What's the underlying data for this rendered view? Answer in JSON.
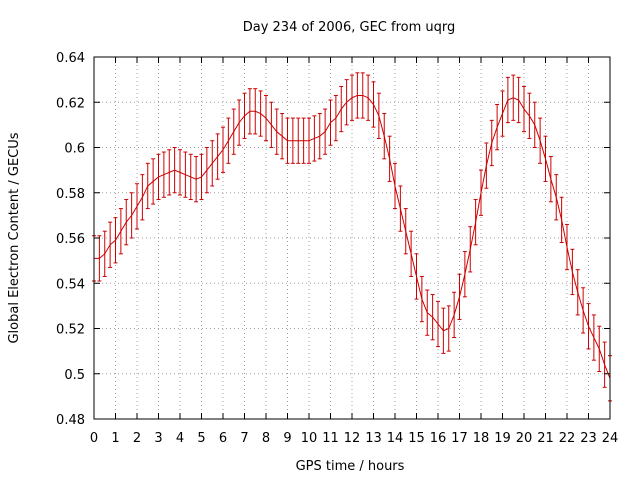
{
  "chart_data": {
    "type": "line",
    "title": "Day 234 of 2006, GEC from uqrg",
    "xlabel": "GPS time / hours",
    "ylabel": "Global Electron Content / GECUs",
    "xlim": [
      0,
      24
    ],
    "ylim": [
      0.48,
      0.64
    ],
    "xticks": [
      0,
      1,
      2,
      3,
      4,
      5,
      6,
      7,
      8,
      9,
      10,
      11,
      12,
      13,
      14,
      15,
      16,
      17,
      18,
      19,
      20,
      21,
      22,
      23,
      24
    ],
    "yticks": [
      "0.48",
      "0.5",
      "0.52",
      "0.54",
      "0.56",
      "0.58",
      "0.6",
      "0.62",
      "0.64"
    ],
    "grid": true,
    "colors": {
      "series": "#cc0000",
      "grid": "#a0a0a0",
      "frame": "#000000"
    },
    "series": [
      {
        "error_bars": true,
        "x": [
          0,
          0.25,
          0.5,
          0.75,
          1,
          1.25,
          1.5,
          1.75,
          2,
          2.25,
          2.5,
          2.75,
          3,
          3.25,
          3.5,
          3.75,
          4,
          4.25,
          4.5,
          4.75,
          5,
          5.25,
          5.5,
          5.75,
          6,
          6.25,
          6.5,
          6.75,
          7,
          7.25,
          7.5,
          7.75,
          8,
          8.25,
          8.5,
          8.75,
          9,
          9.25,
          9.5,
          9.75,
          10,
          10.25,
          10.5,
          10.75,
          11,
          11.25,
          11.5,
          11.75,
          12,
          12.25,
          12.5,
          12.75,
          13,
          13.25,
          13.5,
          13.75,
          14,
          14.25,
          14.5,
          14.75,
          15,
          15.25,
          15.5,
          15.75,
          16,
          16.25,
          16.5,
          16.75,
          17,
          17.25,
          17.5,
          17.75,
          18,
          18.25,
          18.5,
          18.75,
          19,
          19.25,
          19.5,
          19.75,
          20,
          20.25,
          20.5,
          20.75,
          21,
          21.25,
          21.5,
          21.75,
          22,
          22.25,
          22.5,
          22.75,
          23,
          23.25,
          23.5,
          23.75,
          24
        ],
        "y": [
          0.551,
          0.551,
          0.553,
          0.557,
          0.559,
          0.563,
          0.567,
          0.57,
          0.574,
          0.578,
          0.583,
          0.585,
          0.587,
          0.588,
          0.589,
          0.59,
          0.589,
          0.588,
          0.587,
          0.586,
          0.587,
          0.59,
          0.593,
          0.596,
          0.599,
          0.603,
          0.607,
          0.611,
          0.614,
          0.616,
          0.616,
          0.615,
          0.613,
          0.61,
          0.607,
          0.605,
          0.603,
          0.603,
          0.603,
          0.603,
          0.603,
          0.604,
          0.605,
          0.607,
          0.611,
          0.613,
          0.617,
          0.62,
          0.622,
          0.623,
          0.623,
          0.622,
          0.619,
          0.614,
          0.605,
          0.595,
          0.583,
          0.573,
          0.563,
          0.553,
          0.543,
          0.533,
          0.527,
          0.525,
          0.522,
          0.519,
          0.52,
          0.526,
          0.534,
          0.544,
          0.555,
          0.567,
          0.58,
          0.592,
          0.602,
          0.609,
          0.615,
          0.621,
          0.622,
          0.621,
          0.617,
          0.614,
          0.61,
          0.603,
          0.595,
          0.586,
          0.578,
          0.568,
          0.556,
          0.545,
          0.536,
          0.528,
          0.521,
          0.516,
          0.511,
          0.504,
          0.498
        ],
        "error": [
          0.01,
          0.01,
          0.01,
          0.01,
          0.01,
          0.01,
          0.01,
          0.01,
          0.01,
          0.01,
          0.01,
          0.01,
          0.01,
          0.01,
          0.01,
          0.01,
          0.01,
          0.01,
          0.01,
          0.01,
          0.01,
          0.01,
          0.01,
          0.01,
          0.01,
          0.01,
          0.01,
          0.01,
          0.01,
          0.01,
          0.01,
          0.01,
          0.01,
          0.01,
          0.01,
          0.01,
          0.01,
          0.01,
          0.01,
          0.01,
          0.01,
          0.01,
          0.01,
          0.01,
          0.01,
          0.01,
          0.01,
          0.01,
          0.01,
          0.01,
          0.01,
          0.01,
          0.01,
          0.01,
          0.01,
          0.01,
          0.01,
          0.01,
          0.01,
          0.01,
          0.01,
          0.01,
          0.01,
          0.01,
          0.01,
          0.01,
          0.01,
          0.01,
          0.01,
          0.01,
          0.01,
          0.01,
          0.01,
          0.01,
          0.01,
          0.01,
          0.01,
          0.01,
          0.01,
          0.01,
          0.01,
          0.01,
          0.01,
          0.01,
          0.01,
          0.01,
          0.01,
          0.01,
          0.01,
          0.01,
          0.01,
          0.01,
          0.01,
          0.01,
          0.01,
          0.01,
          0.01
        ]
      }
    ]
  }
}
